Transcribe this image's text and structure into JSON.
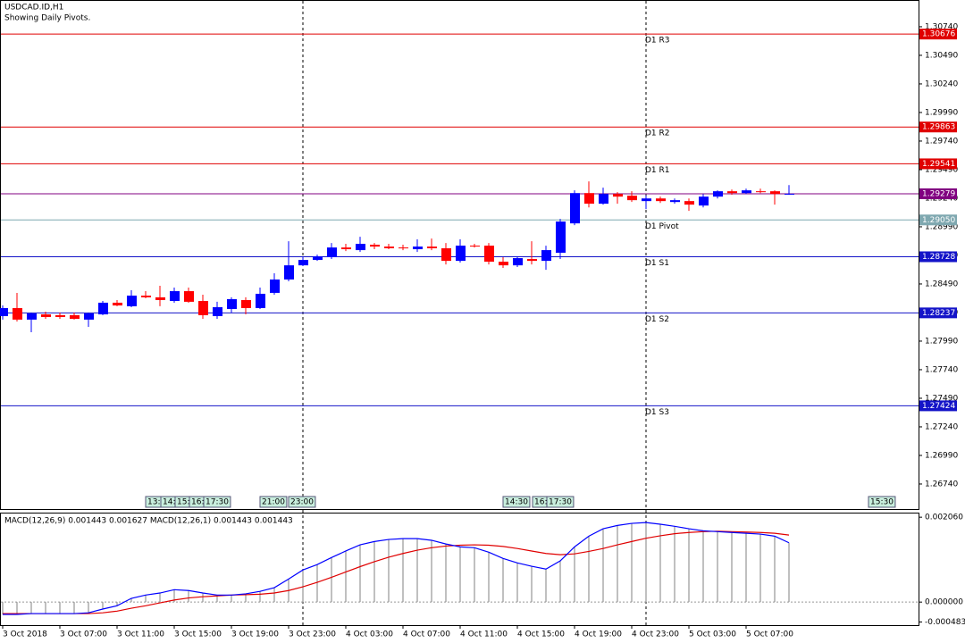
{
  "chart_data": {
    "type": "candlestick",
    "title": "USDCAD.ID,H1",
    "subtitle": "Showing Daily Pivots.",
    "categories": [
      "3 Oct 2018",
      null,
      null,
      null,
      "3 Oct 07:00",
      null,
      null,
      null,
      "3 Oct 11:00",
      null,
      null,
      null,
      "3 Oct 15:00",
      null,
      null,
      null,
      "3 Oct 19:00",
      null,
      null,
      null,
      "3 Oct 23:00",
      null,
      null,
      null,
      "4 Oct 03:00",
      null,
      null,
      null,
      "4 Oct 07:00",
      null,
      null,
      null,
      "4 Oct 11:00",
      null,
      null,
      null,
      "4 Oct 15:00",
      null,
      null,
      null,
      "4 Oct 19:00",
      null,
      null,
      null,
      "4 Oct 23:00",
      null,
      null,
      null,
      "5 Oct 03:00",
      null,
      null,
      null,
      "5 Oct 07:00",
      null,
      null,
      null
    ],
    "open": [
      1.28209,
      1.28279,
      1.28178,
      1.28224,
      1.28217,
      1.28217,
      1.28178,
      1.28224,
      1.28326,
      1.28295,
      1.28388,
      1.28373,
      1.28341,
      1.28427,
      1.28341,
      1.28209,
      1.28271,
      1.28349,
      1.28279,
      1.28412,
      1.28529,
      1.28653,
      1.287,
      1.28724,
      1.28809,
      1.28786,
      1.28833,
      1.28817,
      1.28809,
      1.28794,
      1.28817,
      1.28802,
      1.28692,
      1.28825,
      1.28825,
      1.28685,
      1.28653,
      1.28708,
      1.28692,
      1.28763,
      1.2902,
      1.29285,
      1.29192,
      1.29277,
      1.29262,
      1.29215,
      1.29238,
      1.29207,
      1.29215,
      1.29176,
      1.29254,
      1.29301,
      1.29285,
      1.29301,
      1.29301,
      1.29277
    ],
    "high": [
      1.28302,
      1.28412,
      1.2824,
      1.28248,
      1.2824,
      1.2824,
      1.2824,
      1.28341,
      1.28349,
      1.28435,
      1.28427,
      1.28474,
      1.28458,
      1.28458,
      1.28396,
      1.28334,
      1.28373,
      1.28373,
      1.28458,
      1.28583,
      1.28864,
      1.28724,
      1.28747,
      1.28848,
      1.28841,
      1.28903,
      1.28848,
      1.28841,
      1.28833,
      1.2888,
      1.28887,
      1.28848,
      1.2888,
      1.28841,
      1.28848,
      1.28724,
      1.28731,
      1.28864,
      1.28825,
      1.29059,
      1.29309,
      1.29387,
      1.29332,
      1.29293,
      1.29301,
      1.29262,
      1.29254,
      1.29238,
      1.29238,
      1.29277,
      1.29309,
      1.29316,
      1.29324,
      1.29324,
      1.29309,
      1.29355
    ],
    "low": [
      1.28178,
      1.28162,
      1.28068,
      1.28185,
      1.28185,
      1.28178,
      1.28115,
      1.28217,
      1.28295,
      1.28287,
      1.28365,
      1.28295,
      1.28326,
      1.28326,
      1.28185,
      1.28185,
      1.2824,
      1.28224,
      1.28271,
      1.28396,
      1.28513,
      1.28646,
      1.28692,
      1.28708,
      1.28778,
      1.2877,
      1.28794,
      1.28794,
      1.28786,
      1.2877,
      1.28786,
      1.28661,
      1.28677,
      1.28809,
      1.28661,
      1.2863,
      1.28638,
      1.28661,
      1.28614,
      1.28708,
      1.29004,
      1.2916,
      1.29184,
      1.29192,
      1.29207,
      1.29145,
      1.29199,
      1.29192,
      1.29129,
      1.2916,
      1.29238,
      1.2927,
      1.29277,
      1.29285,
      1.29184,
      1.2927
    ],
    "close": [
      1.28279,
      1.28178,
      1.28232,
      1.28201,
      1.28201,
      1.28185,
      1.28232,
      1.28326,
      1.28302,
      1.28388,
      1.28373,
      1.28349,
      1.28427,
      1.28334,
      1.28217,
      1.28287,
      1.28357,
      1.28279,
      1.28404,
      1.28529,
      1.28653,
      1.287,
      1.28731,
      1.28809,
      1.28794,
      1.28841,
      1.28817,
      1.28802,
      1.28802,
      1.28817,
      1.28802,
      1.28692,
      1.28825,
      1.28817,
      1.28685,
      1.28653,
      1.28716,
      1.28692,
      1.28786,
      1.29036,
      1.29285,
      1.29192,
      1.29277,
      1.29254,
      1.29223,
      1.29238,
      1.29215,
      1.29223,
      1.29184,
      1.29254,
      1.29301,
      1.29285,
      1.29309,
      1.29293,
      1.29277,
      1.29279
    ],
    "up_color": "#0000ff",
    "down_color": "#ff0000",
    "ylim": [
      1.26521,
      1.30974
    ],
    "yticks": [
      {
        "value": 1.2674,
        "label": "1.26740"
      },
      {
        "value": 1.2699,
        "label": "1.26990"
      },
      {
        "value": 1.2724,
        "label": "1.27240"
      },
      {
        "value": 1.2749,
        "label": "1.27490"
      },
      {
        "value": 1.2774,
        "label": "1.27740"
      },
      {
        "value": 1.2799,
        "label": "1.27990"
      },
      {
        "value": 1.2824,
        "label": "1.28240"
      },
      {
        "value": 1.2849,
        "label": "1.28490"
      },
      {
        "value": 1.2874,
        "label": "1.28740"
      },
      {
        "value": 1.2899,
        "label": "1.28990"
      },
      {
        "value": 1.2924,
        "label": "1.29240"
      },
      {
        "value": 1.2949,
        "label": "1.29490"
      },
      {
        "value": 1.2974,
        "label": "1.29740"
      },
      {
        "value": 1.2999,
        "label": "1.29990"
      },
      {
        "value": 1.3024,
        "label": "1.30240"
      },
      {
        "value": 1.3049,
        "label": "1.30490"
      },
      {
        "value": 1.3074,
        "label": "1.30740"
      }
    ],
    "levels": [
      {
        "label": "D1 R3",
        "value": 1.30676,
        "color": "#e00000"
      },
      {
        "label": "D1 R2",
        "value": 1.29863,
        "color": "#e00000"
      },
      {
        "label": "D1 R1",
        "value": 1.29541,
        "color": "#e00000"
      },
      {
        "label": "D1 Pivot",
        "value": 1.2905,
        "value_label": "1.29050",
        "color": "#7fa8b0"
      },
      {
        "label": "D1 S1",
        "value": 1.28728,
        "color": "#1414c8"
      },
      {
        "label": "D1 S2",
        "value": 1.28237,
        "color": "#1414c8"
      },
      {
        "label": "D1 S3",
        "value": 1.27424,
        "color": "#1414c8"
      }
    ],
    "bid": {
      "value": 1.29279,
      "color": "#800080"
    },
    "event_markers": [
      "13:",
      "14:",
      "15:",
      "16:",
      "17:30",
      "21:00",
      "23:00",
      "14:30",
      "16:",
      "17:30",
      "15:30"
    ],
    "macd": {
      "title": "MACD(12,26,9) 0.001443 0.001627 MACD(12,26,1) 0.001443 0.001443",
      "ylim": [
        -0.00056,
        0.00215
      ],
      "yticks": [
        {
          "value": 0.00206,
          "label": "0.002060"
        },
        {
          "value": 0,
          "label": "0.000000"
        },
        {
          "value": -0.000483,
          "label": "-0.000483"
        }
      ],
      "color": "#0000ff",
      "bar_color": "#808080",
      "values": [
        -0.0003,
        -0.0003,
        -0.00028,
        -0.00028,
        -0.00028,
        -0.00028,
        -0.00026,
        -0.00017,
        -9e-05,
        9e-05,
        0.00017,
        0.00022,
        0.0003,
        0.00028,
        0.00022,
        0.00017,
        0.00017,
        0.0002,
        0.00026,
        0.00035,
        0.00056,
        0.00078,
        0.00091,
        0.00108,
        0.00124,
        0.00139,
        0.00147,
        0.00152,
        0.00154,
        0.00154,
        0.0015,
        0.00141,
        0.00134,
        0.00132,
        0.00121,
        0.00106,
        0.00095,
        0.00087,
        0.0008,
        0.001,
        0.00134,
        0.0016,
        0.00178,
        0.00186,
        0.00191,
        0.00193,
        0.00189,
        0.00184,
        0.00178,
        0.00173,
        0.00171,
        0.00169,
        0.00167,
        0.00165,
        0.0016,
        0.00144
      ],
      "signal_color": "#e00000",
      "signal_values": [
        -0.00028,
        -0.00028,
        -0.00028,
        -0.00028,
        -0.00028,
        -0.00028,
        -0.00028,
        -0.00026,
        -0.00022,
        -0.00015,
        -9e-05,
        -2e-05,
        5e-05,
        0.0001,
        0.00013,
        0.00015,
        0.00017,
        0.00018,
        0.00019,
        0.00022,
        0.00028,
        0.00037,
        0.00048,
        0.0006,
        0.00073,
        0.00086,
        0.00098,
        0.00109,
        0.00118,
        0.00126,
        0.00132,
        0.00136,
        0.00138,
        0.00139,
        0.00138,
        0.00135,
        0.0013,
        0.00124,
        0.00118,
        0.00115,
        0.00117,
        0.00123,
        0.0013,
        0.00139,
        0.00147,
        0.00155,
        0.00161,
        0.00166,
        0.00169,
        0.00171,
        0.00172,
        0.00171,
        0.0017,
        0.00169,
        0.00167,
        0.001627
      ]
    }
  }
}
